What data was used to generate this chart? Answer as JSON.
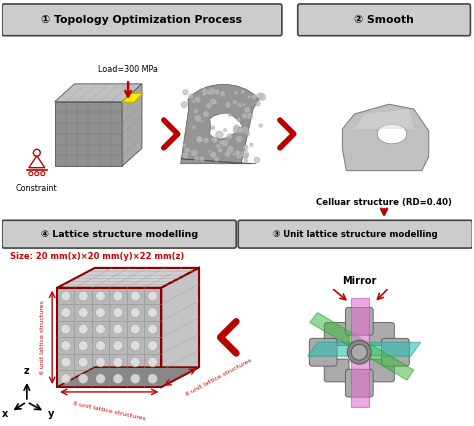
{
  "bg_color": "#ffffff",
  "box_bg": "#cccccc",
  "box_border": "#444444",
  "header1": "① Topology Optimization Process",
  "header2": "② Smooth",
  "header3": "③ Unit lattice structure modelling",
  "header4": "④ Lattice structure modelling",
  "load_label": "Load=300 MPa",
  "constraint_label": "Constraint",
  "cellular_label": "Celluar structure (RD=0.40)",
  "mirror_label": "Mirror",
  "size_label": "Size: 20 mm(x)×20 mm(y)×22 mm(z)",
  "dim_label_front": "6 unit lattice structures",
  "dim_label_side": "6 unit lattice structures",
  "dim_label_top": "6 unit lattice structures",
  "arrow_color": "#bb0000",
  "red_text_color": "#cc0000",
  "text_color": "#000000",
  "gray1": "#888888",
  "gray2": "#aaaaaa",
  "gray3": "#c8c8c8",
  "gray4": "#e0e0e0"
}
